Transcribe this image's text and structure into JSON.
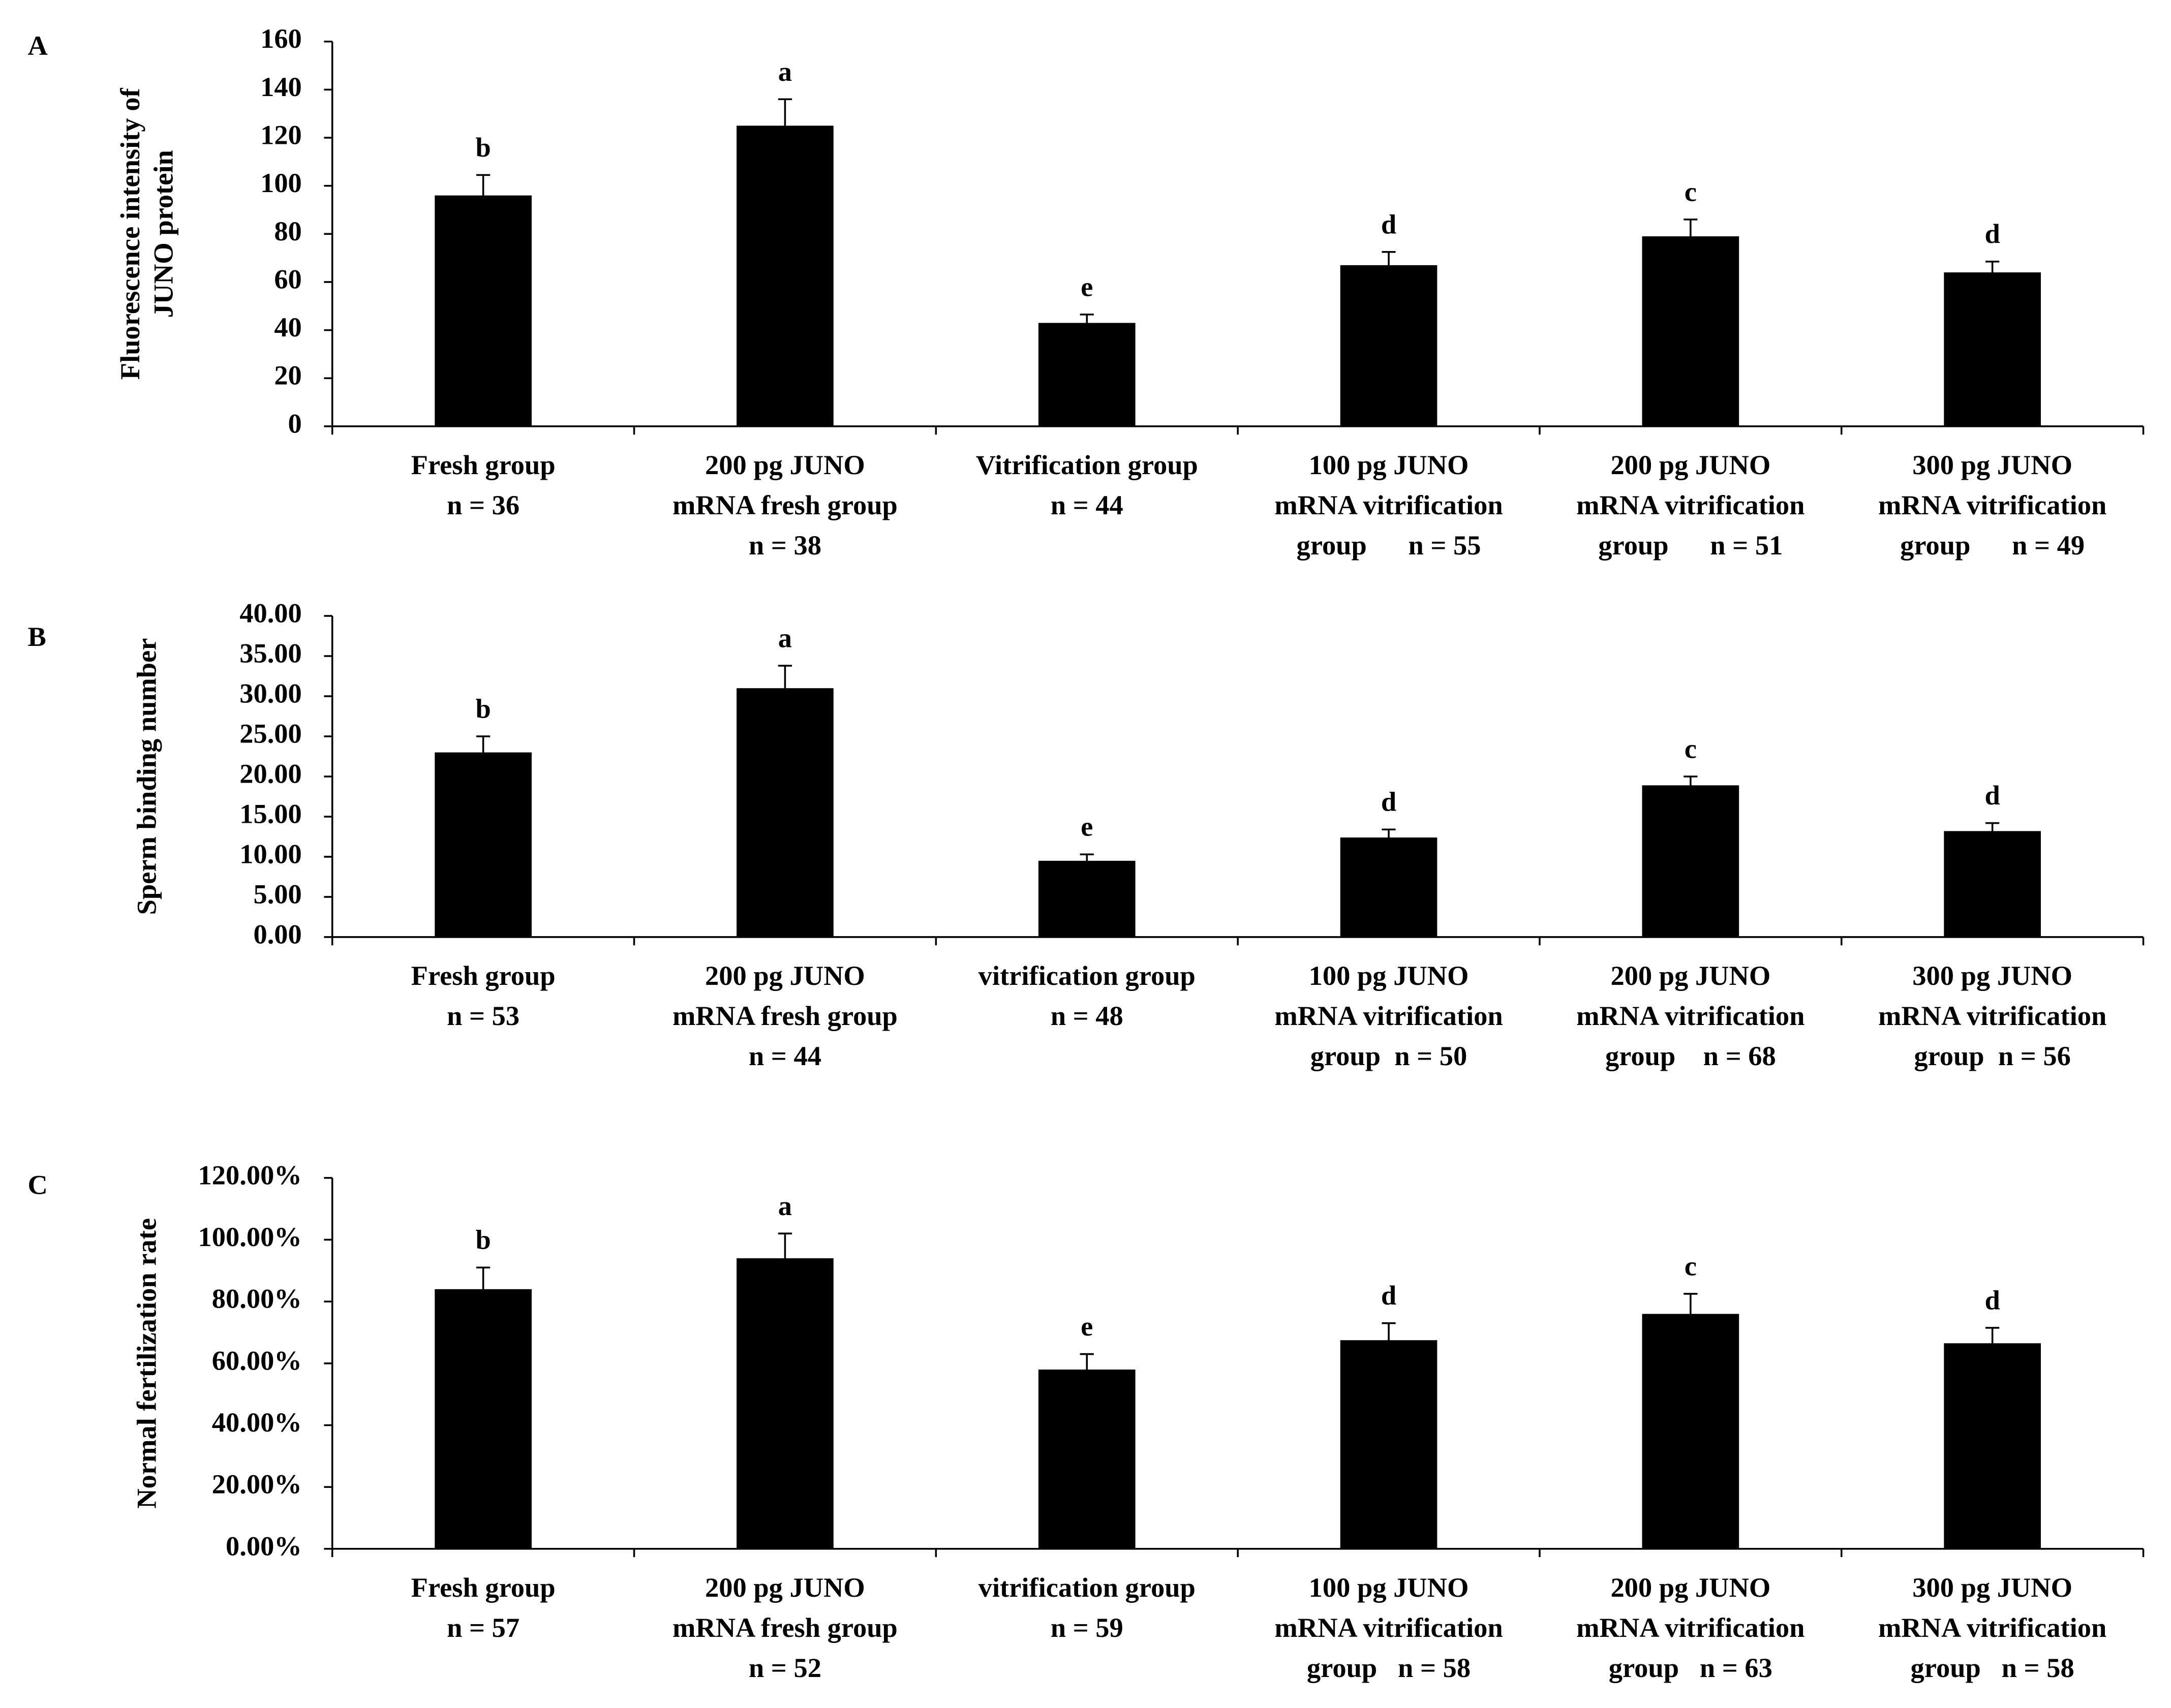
{
  "chart_data": [
    {
      "type": "bar",
      "panel": "A",
      "y_label": [
        "Fluorescence intensity of",
        "JUNO protein"
      ],
      "categories": [
        [
          "Fresh group",
          "n = 36"
        ],
        [
          "200 pg JUNO",
          "mRNA fresh group",
          "n = 38"
        ],
        [
          "Vitrification group",
          "n = 44"
        ],
        [
          "100 pg JUNO",
          "mRNA vitrification",
          "group      n = 55"
        ],
        [
          "200 pg JUNO",
          "mRNA vitrification",
          "group      n = 51"
        ],
        [
          "300 pg JUNO",
          "mRNA vitrification",
          "group      n = 49"
        ]
      ],
      "values": [
        96,
        125,
        43,
        67,
        79,
        64
      ],
      "errors": [
        8.5,
        11,
        3.5,
        5.5,
        7,
        4.5
      ],
      "annotations": [
        "b",
        "a",
        "e",
        "d",
        "c",
        "d"
      ],
      "color": "#000000",
      "ylim": [
        0,
        160
      ],
      "yticks": [
        0,
        20,
        40,
        60,
        80,
        100,
        120,
        140,
        160
      ]
    },
    {
      "type": "bar",
      "panel": "B",
      "y_label": [
        "Sperm binding number"
      ],
      "categories": [
        [
          "Fresh group",
          "n = 53"
        ],
        [
          "200 pg JUNO",
          "mRNA fresh group",
          "n = 44"
        ],
        [
          "vitrification group",
          "n = 48"
        ],
        [
          "100 pg JUNO",
          "mRNA vitrification",
          "group  n = 50"
        ],
        [
          "200 pg JUNO",
          "mRNA vitrification",
          "group    n = 68"
        ],
        [
          "300 pg JUNO",
          "mRNA vitrification",
          "group  n = 56"
        ]
      ],
      "values": [
        23,
        31,
        9.5,
        12.4,
        18.9,
        13.2
      ],
      "errors": [
        2,
        2.8,
        0.8,
        1,
        1.1,
        1
      ],
      "annotations": [
        "b",
        "a",
        "e",
        "d",
        "c",
        "d"
      ],
      "color": "#000000",
      "ylim": [
        0,
        40
      ],
      "yticks": [
        {
          "value": 0,
          "label": "0.00"
        },
        {
          "value": 5,
          "label": "5.00"
        },
        {
          "value": 10,
          "label": "10.00"
        },
        {
          "value": 15,
          "label": "15.00"
        },
        {
          "value": 20,
          "label": "20.00"
        },
        {
          "value": 25,
          "label": "25.00"
        },
        {
          "value": 30,
          "label": "30.00"
        },
        {
          "value": 35,
          "label": "35.00"
        },
        {
          "value": 40,
          "label": "40.00"
        }
      ]
    },
    {
      "type": "bar",
      "panel": "C",
      "y_label": [
        "Normal fertilization rate"
      ],
      "categories": [
        [
          "Fresh group",
          "n = 57"
        ],
        [
          "200 pg JUNO",
          "mRNA fresh group",
          "n = 52"
        ],
        [
          "vitrification group",
          "n = 59"
        ],
        [
          "100 pg JUNO",
          "mRNA vitrification",
          "group   n = 58"
        ],
        [
          "200 pg JUNO",
          "mRNA vitrification",
          "group   n = 63"
        ],
        [
          "300 pg JUNO",
          "mRNA vitrification",
          "group   n = 58"
        ]
      ],
      "values": [
        84,
        94,
        58,
        67.5,
        76,
        66.5
      ],
      "errors": [
        7,
        8,
        5,
        5.5,
        6.5,
        5
      ],
      "annotations": [
        "b",
        "a",
        "e",
        "d",
        "c",
        "d"
      ],
      "color": "#000000",
      "ylim": [
        0,
        120
      ],
      "yticks": [
        {
          "value": 0,
          "label": "0.00%"
        },
        {
          "value": 20,
          "label": "20.00%"
        },
        {
          "value": 40,
          "label": "40.00%"
        },
        {
          "value": 60,
          "label": "60.00%"
        },
        {
          "value": 80,
          "label": "80.00%"
        },
        {
          "value": 100,
          "label": "100.00%"
        },
        {
          "value": 120,
          "label": "120.00%"
        }
      ]
    }
  ]
}
